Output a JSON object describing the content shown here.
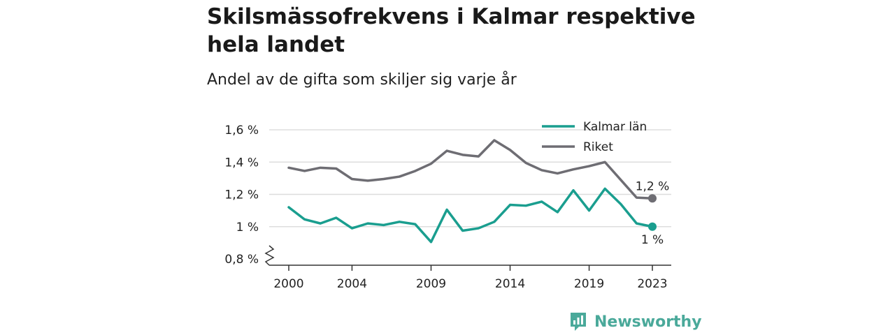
{
  "title": "Skilsmässofrekvens i Kalmar respektive hela landet",
  "subtitle": "Andel av de gifta som skiljer sig varje år",
  "brand": {
    "name": "Newsworthy",
    "icon": "newsworthy-logo-icon",
    "color": "#4aa99a"
  },
  "colors": {
    "kalmar": "#1a9e8f",
    "riket": "#6e6d73",
    "grid": "#dddddd",
    "axis": "#333333"
  },
  "chart_data": {
    "type": "line",
    "x": [
      2000,
      2001,
      2002,
      2003,
      2004,
      2005,
      2006,
      2007,
      2008,
      2009,
      2010,
      2011,
      2012,
      2013,
      2014,
      2015,
      2016,
      2017,
      2018,
      2019,
      2020,
      2021,
      2022,
      2023
    ],
    "x_ticks": [
      2000,
      2004,
      2009,
      2014,
      2019,
      2023
    ],
    "x_tick_labels": [
      "2000",
      "2004",
      "2009",
      "2014",
      "2019",
      "2023"
    ],
    "y_ticks": [
      0.8,
      1.0,
      1.2,
      1.4,
      1.6
    ],
    "y_tick_labels": [
      "0,8 %",
      "1 %",
      "1,2 %",
      "1,4 %",
      "1,6 %"
    ],
    "ylim": [
      0.8,
      1.6
    ],
    "y_axis_break": true,
    "grid": "horizontal",
    "legend_position": "top-right",
    "series": [
      {
        "name": "Kalmar län",
        "color": "#1a9e8f",
        "end_label": "1 %",
        "values": [
          1.12,
          1.045,
          1.02,
          1.055,
          0.99,
          1.02,
          1.01,
          1.03,
          1.015,
          0.905,
          1.105,
          0.975,
          0.99,
          1.03,
          1.135,
          1.13,
          1.155,
          1.09,
          1.225,
          1.1,
          1.235,
          1.14,
          1.02,
          1.0
        ]
      },
      {
        "name": "Riket",
        "color": "#6e6d73",
        "end_label": "1,2 %",
        "values": [
          1.365,
          1.345,
          1.365,
          1.36,
          1.295,
          1.285,
          1.295,
          1.31,
          1.345,
          1.39,
          1.47,
          1.445,
          1.435,
          1.535,
          1.475,
          1.395,
          1.35,
          1.33,
          1.355,
          1.375,
          1.4,
          1.29,
          1.18,
          1.175
        ]
      }
    ]
  }
}
